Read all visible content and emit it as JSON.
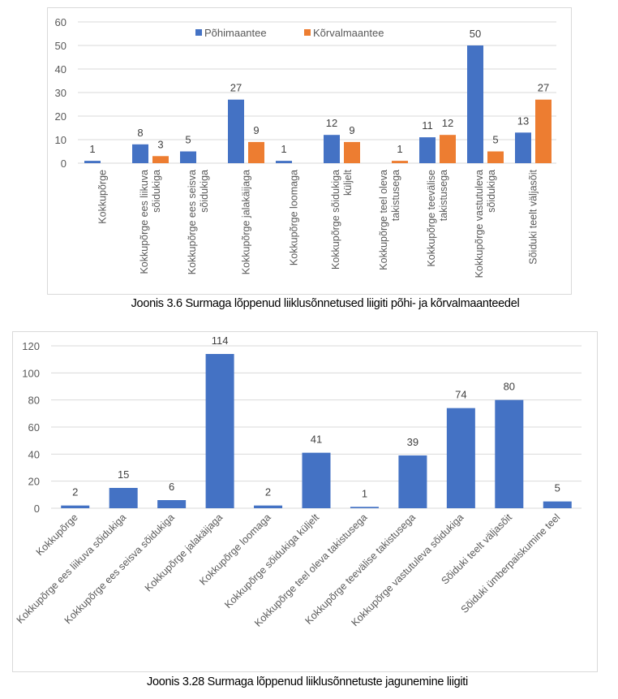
{
  "chart_data": [
    {
      "type": "bar",
      "title": "",
      "caption": "Joonis 3.6 Surmaga lõppenud liiklusõnnetused liigiti põhi- ja kõrvalmaanteedel",
      "xlabel": "",
      "ylabel": "",
      "ylim": [
        0,
        60
      ],
      "yticks": [
        0,
        10,
        20,
        30,
        40,
        50,
        60
      ],
      "grid": true,
      "legend_position": "top-center",
      "label_orientation": "vertical",
      "categories": [
        [
          "Kokkupõrge"
        ],
        [
          "Kokkupõrge ees liikuva",
          "sõidukiga"
        ],
        [
          "Kokkupõrge ees seisva",
          "sõidukiga"
        ],
        [
          "Kokkupõrge jalakäijaga"
        ],
        [
          "Kokkupõrge loomaga"
        ],
        [
          "Kokkupõrge sõidukiga",
          "küljelt"
        ],
        [
          "Kokkupõrge teel oleva",
          "takistusega"
        ],
        [
          "Kokkupõrge teevälise",
          "takistusega"
        ],
        [
          "Kokkupõrge vastutuleva",
          "sõidukiga"
        ],
        [
          "Sõiduki teelt väljasõit"
        ]
      ],
      "series": [
        {
          "name": "Põhimaantee",
          "color": "#4472c4",
          "values": [
            1,
            8,
            5,
            27,
            1,
            12,
            null,
            11,
            50,
            13
          ]
        },
        {
          "name": "Kõrvalmaantee",
          "color": "#ed7d31",
          "values": [
            null,
            3,
            null,
            9,
            null,
            9,
            1,
            12,
            5,
            27
          ]
        }
      ]
    },
    {
      "type": "bar",
      "title": "",
      "caption": "Joonis 3.28 Surmaga lõppenud liiklusõnnetuste jagunemine liigiti",
      "xlabel": "",
      "ylabel": "",
      "ylim": [
        0,
        120
      ],
      "yticks": [
        0,
        20,
        40,
        60,
        80,
        100,
        120
      ],
      "grid": true,
      "legend_position": "none",
      "label_orientation": "diagonal",
      "categories": [
        "Kokkupõrge",
        "Kokkupõrge ees liikuva sõidukiga",
        "Kokkupõrge ees seisva sõidukiga",
        "Kokkupõrge jalakäijaga",
        "Kokkupõrge loomaga",
        "Kokkupõrge sõidukiga küljelt",
        "Kokkupõrge teel oleva takistusega",
        "Kokkupõrge teevälise takistusega",
        "Kokkupõrge vastutuleva sõidukiga",
        "Sõiduki teelt väljasõit",
        "Sõiduki ümberpaiskumine teel"
      ],
      "series": [
        {
          "name": "",
          "color": "#4472c4",
          "values": [
            2,
            15,
            6,
            114,
            2,
            41,
            1,
            39,
            74,
            80,
            5
          ]
        }
      ]
    }
  ]
}
